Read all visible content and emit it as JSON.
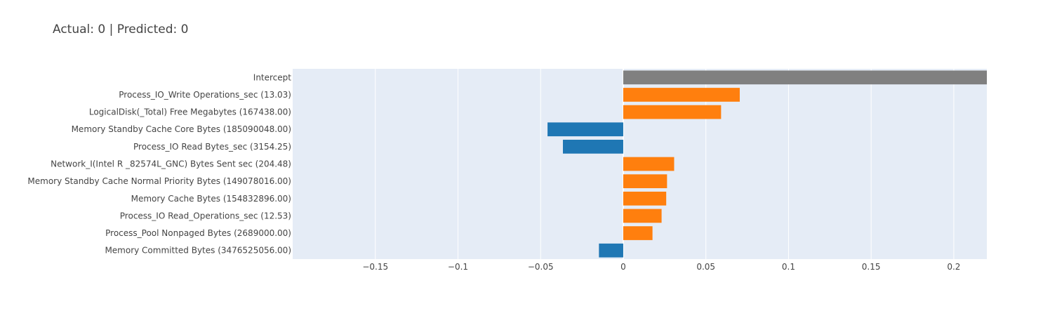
{
  "chart_data": {
    "type": "bar",
    "orientation": "horizontal",
    "title": "Actual: 0 | Predicted: 0",
    "xlabel": "",
    "ylabel": "",
    "xlim": [
      -0.2,
      0.22
    ],
    "x_ticks": [
      -0.15,
      -0.1,
      -0.05,
      0,
      0.05,
      0.1,
      0.15,
      0.2
    ],
    "x_tick_labels": [
      "−0.15",
      "−0.1",
      "−0.05",
      "0",
      "0.05",
      "0.1",
      "0.15",
      "0.2"
    ],
    "grid": true,
    "legend": "none",
    "colors": {
      "positive": "#ff7f0e",
      "negative": "#1f77b4",
      "intercept": "#808080",
      "plot_bg": "#e5ecf6",
      "grid": "#ffffff"
    },
    "bars": [
      {
        "label": "Intercept",
        "value": 0.235,
        "kind": "intercept"
      },
      {
        "label": "Process_IO_Write Operations_sec (13.03)",
        "value": 0.0705,
        "kind": "positive"
      },
      {
        "label": "LogicalDisk(_Total) Free Megabytes (167438.00)",
        "value": 0.0592,
        "kind": "positive"
      },
      {
        "label": "Memory Standby Cache Core Bytes (185090048.00)",
        "value": -0.0458,
        "kind": "negative"
      },
      {
        "label": "Process_IO Read Bytes_sec (3154.25)",
        "value": -0.0365,
        "kind": "negative"
      },
      {
        "label": "Network_I(Intel R _82574L_GNC) Bytes Sent sec (204.48)",
        "value": 0.0308,
        "kind": "positive"
      },
      {
        "label": "Memory Standby Cache Normal Priority Bytes (149078016.00)",
        "value": 0.0265,
        "kind": "positive"
      },
      {
        "label": "Memory Cache Bytes (154832896.00)",
        "value": 0.026,
        "kind": "positive"
      },
      {
        "label": "Process_IO Read_Operations_sec (12.53)",
        "value": 0.0232,
        "kind": "positive"
      },
      {
        "label": "Process_Pool Nonpaged Bytes (2689000.00)",
        "value": 0.0177,
        "kind": "positive"
      },
      {
        "label": "Memory Committed Bytes (3476525056.00)",
        "value": -0.0147,
        "kind": "negative"
      }
    ]
  }
}
